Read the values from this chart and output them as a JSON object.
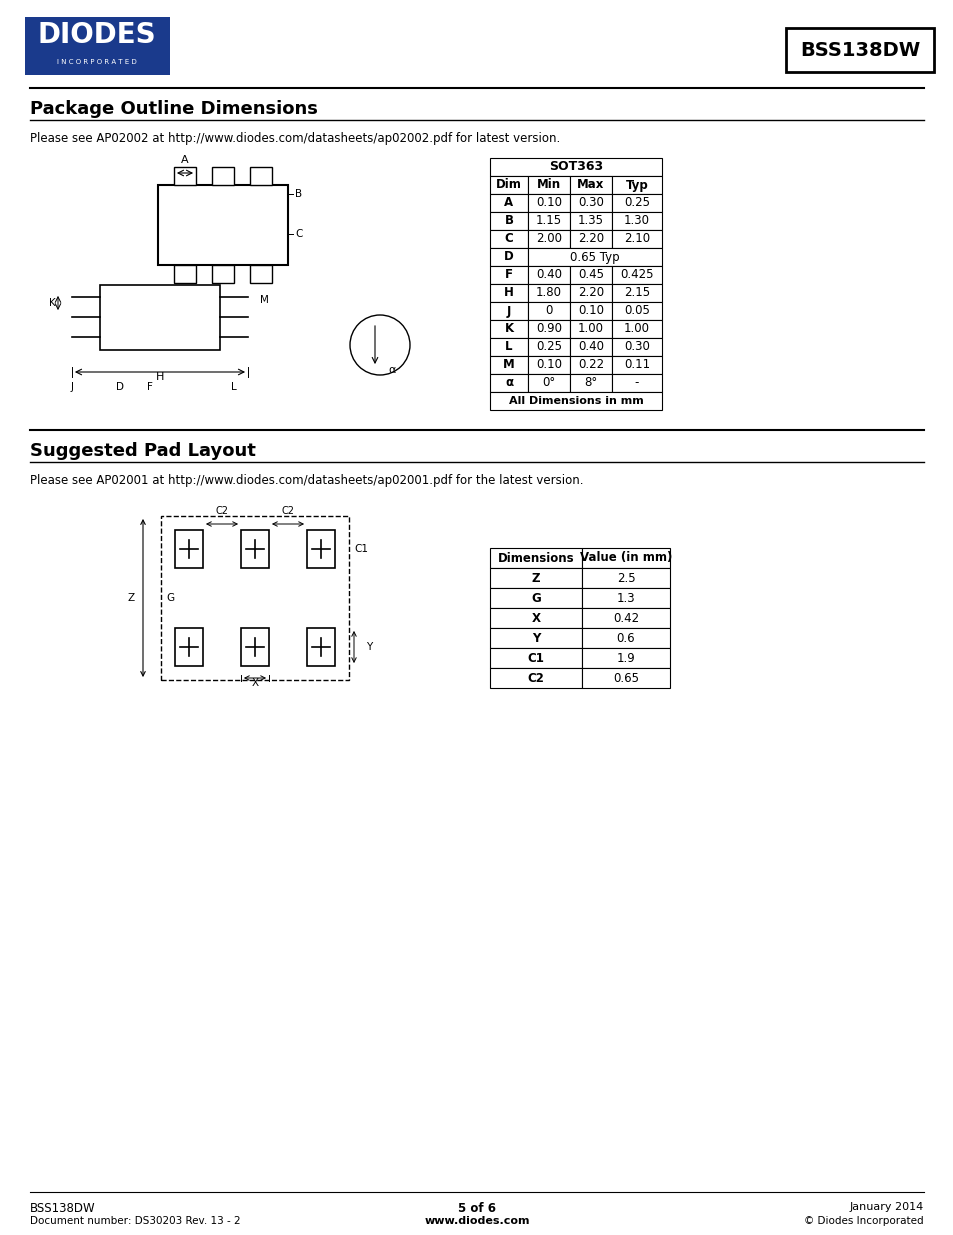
{
  "title_part": "BSS138DW",
  "section1_title": "Package Outline Dimensions",
  "section1_note": "Please see AP02002 at http://www.diodes.com/datasheets/ap02002.pdf for latest version.",
  "sot363_title": "SOT363",
  "sot363_headers": [
    "Dim",
    "Min",
    "Max",
    "Typ"
  ],
  "sot363_rows": [
    [
      "A",
      "0.10",
      "0.30",
      "0.25"
    ],
    [
      "B",
      "1.15",
      "1.35",
      "1.30"
    ],
    [
      "C",
      "2.00",
      "2.20",
      "2.10"
    ],
    [
      "D",
      "",
      "0.65 Typ",
      ""
    ],
    [
      "F",
      "0.40",
      "0.45",
      "0.425"
    ],
    [
      "H",
      "1.80",
      "2.20",
      "2.15"
    ],
    [
      "J",
      "0",
      "0.10",
      "0.05"
    ],
    [
      "K",
      "0.90",
      "1.00",
      "1.00"
    ],
    [
      "L",
      "0.25",
      "0.40",
      "0.30"
    ],
    [
      "M",
      "0.10",
      "0.22",
      "0.11"
    ],
    [
      "α",
      "0°",
      "8°",
      "-"
    ],
    [
      "",
      "All Dimensions in mm",
      "",
      ""
    ]
  ],
  "section2_title": "Suggested Pad Layout",
  "section2_note": "Please see AP02001 at http://www.diodes.com/datasheets/ap02001.pdf for the latest version.",
  "pad_headers": [
    "Dimensions",
    "Value (in mm)"
  ],
  "pad_rows": [
    [
      "Z",
      "2.5"
    ],
    [
      "G",
      "1.3"
    ],
    [
      "X",
      "0.42"
    ],
    [
      "Y",
      "0.6"
    ],
    [
      "C1",
      "1.9"
    ],
    [
      "C2",
      "0.65"
    ]
  ],
  "footer_left1": "BSS138DW",
  "footer_left2": "Document number: DS30203 Rev. 13 - 2",
  "footer_center": "5 of 6",
  "footer_center2": "www.diodes.com",
  "footer_right1": "January 2014",
  "footer_right2": "© Diodes Incorporated",
  "bg_color": "#ffffff",
  "text_color": "#000000",
  "logo_color": "#1a3a8c"
}
